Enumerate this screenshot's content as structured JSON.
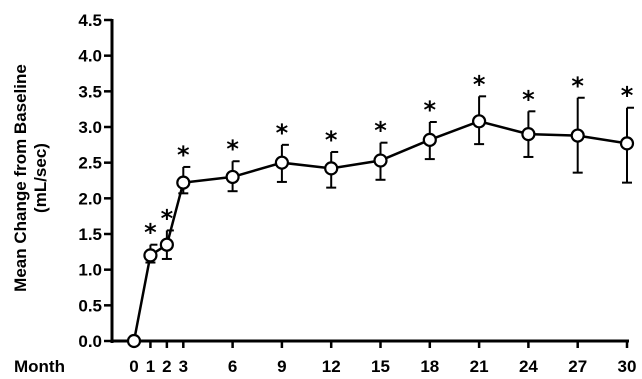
{
  "chart_data": {
    "type": "line",
    "title": "",
    "xlabel": "Month",
    "ylabel_line1": "Mean Change from Baseline",
    "ylabel_line2": "(mL/sec)",
    "x_ticks": [
      "0",
      "1",
      "2",
      "3",
      "6",
      "9",
      "12",
      "15",
      "18",
      "21",
      "24",
      "27",
      "30"
    ],
    "y_ticks": [
      "0.0",
      "0.5",
      "1.0",
      "1.5",
      "2.0",
      "2.5",
      "3.0",
      "3.5",
      "4.0",
      "4.5"
    ],
    "ylim": [
      0,
      4.5
    ],
    "xlim": [
      0,
      30
    ],
    "grid": false,
    "legend": "none",
    "series": [
      {
        "x": [
          0,
          1,
          2,
          3,
          6,
          9,
          12,
          15,
          18,
          21,
          24,
          27,
          30
        ],
        "y": [
          0.0,
          1.2,
          1.35,
          2.22,
          2.3,
          2.5,
          2.42,
          2.53,
          2.82,
          3.08,
          2.9,
          2.88,
          2.77
        ],
        "error_lower": [
          0.0,
          0.1,
          0.2,
          0.15,
          0.2,
          0.27,
          0.27,
          0.27,
          0.27,
          0.32,
          0.32,
          0.52,
          0.55
        ],
        "error_upper": [
          0.0,
          0.15,
          0.2,
          0.22,
          0.22,
          0.25,
          0.23,
          0.25,
          0.25,
          0.35,
          0.32,
          0.53,
          0.5
        ],
        "significant": [
          false,
          true,
          true,
          true,
          true,
          true,
          true,
          true,
          true,
          true,
          true,
          true,
          true
        ],
        "significance_marker": "*"
      }
    ],
    "colors": {
      "line": "#000000",
      "marker_fill": "#ffffff"
    }
  }
}
